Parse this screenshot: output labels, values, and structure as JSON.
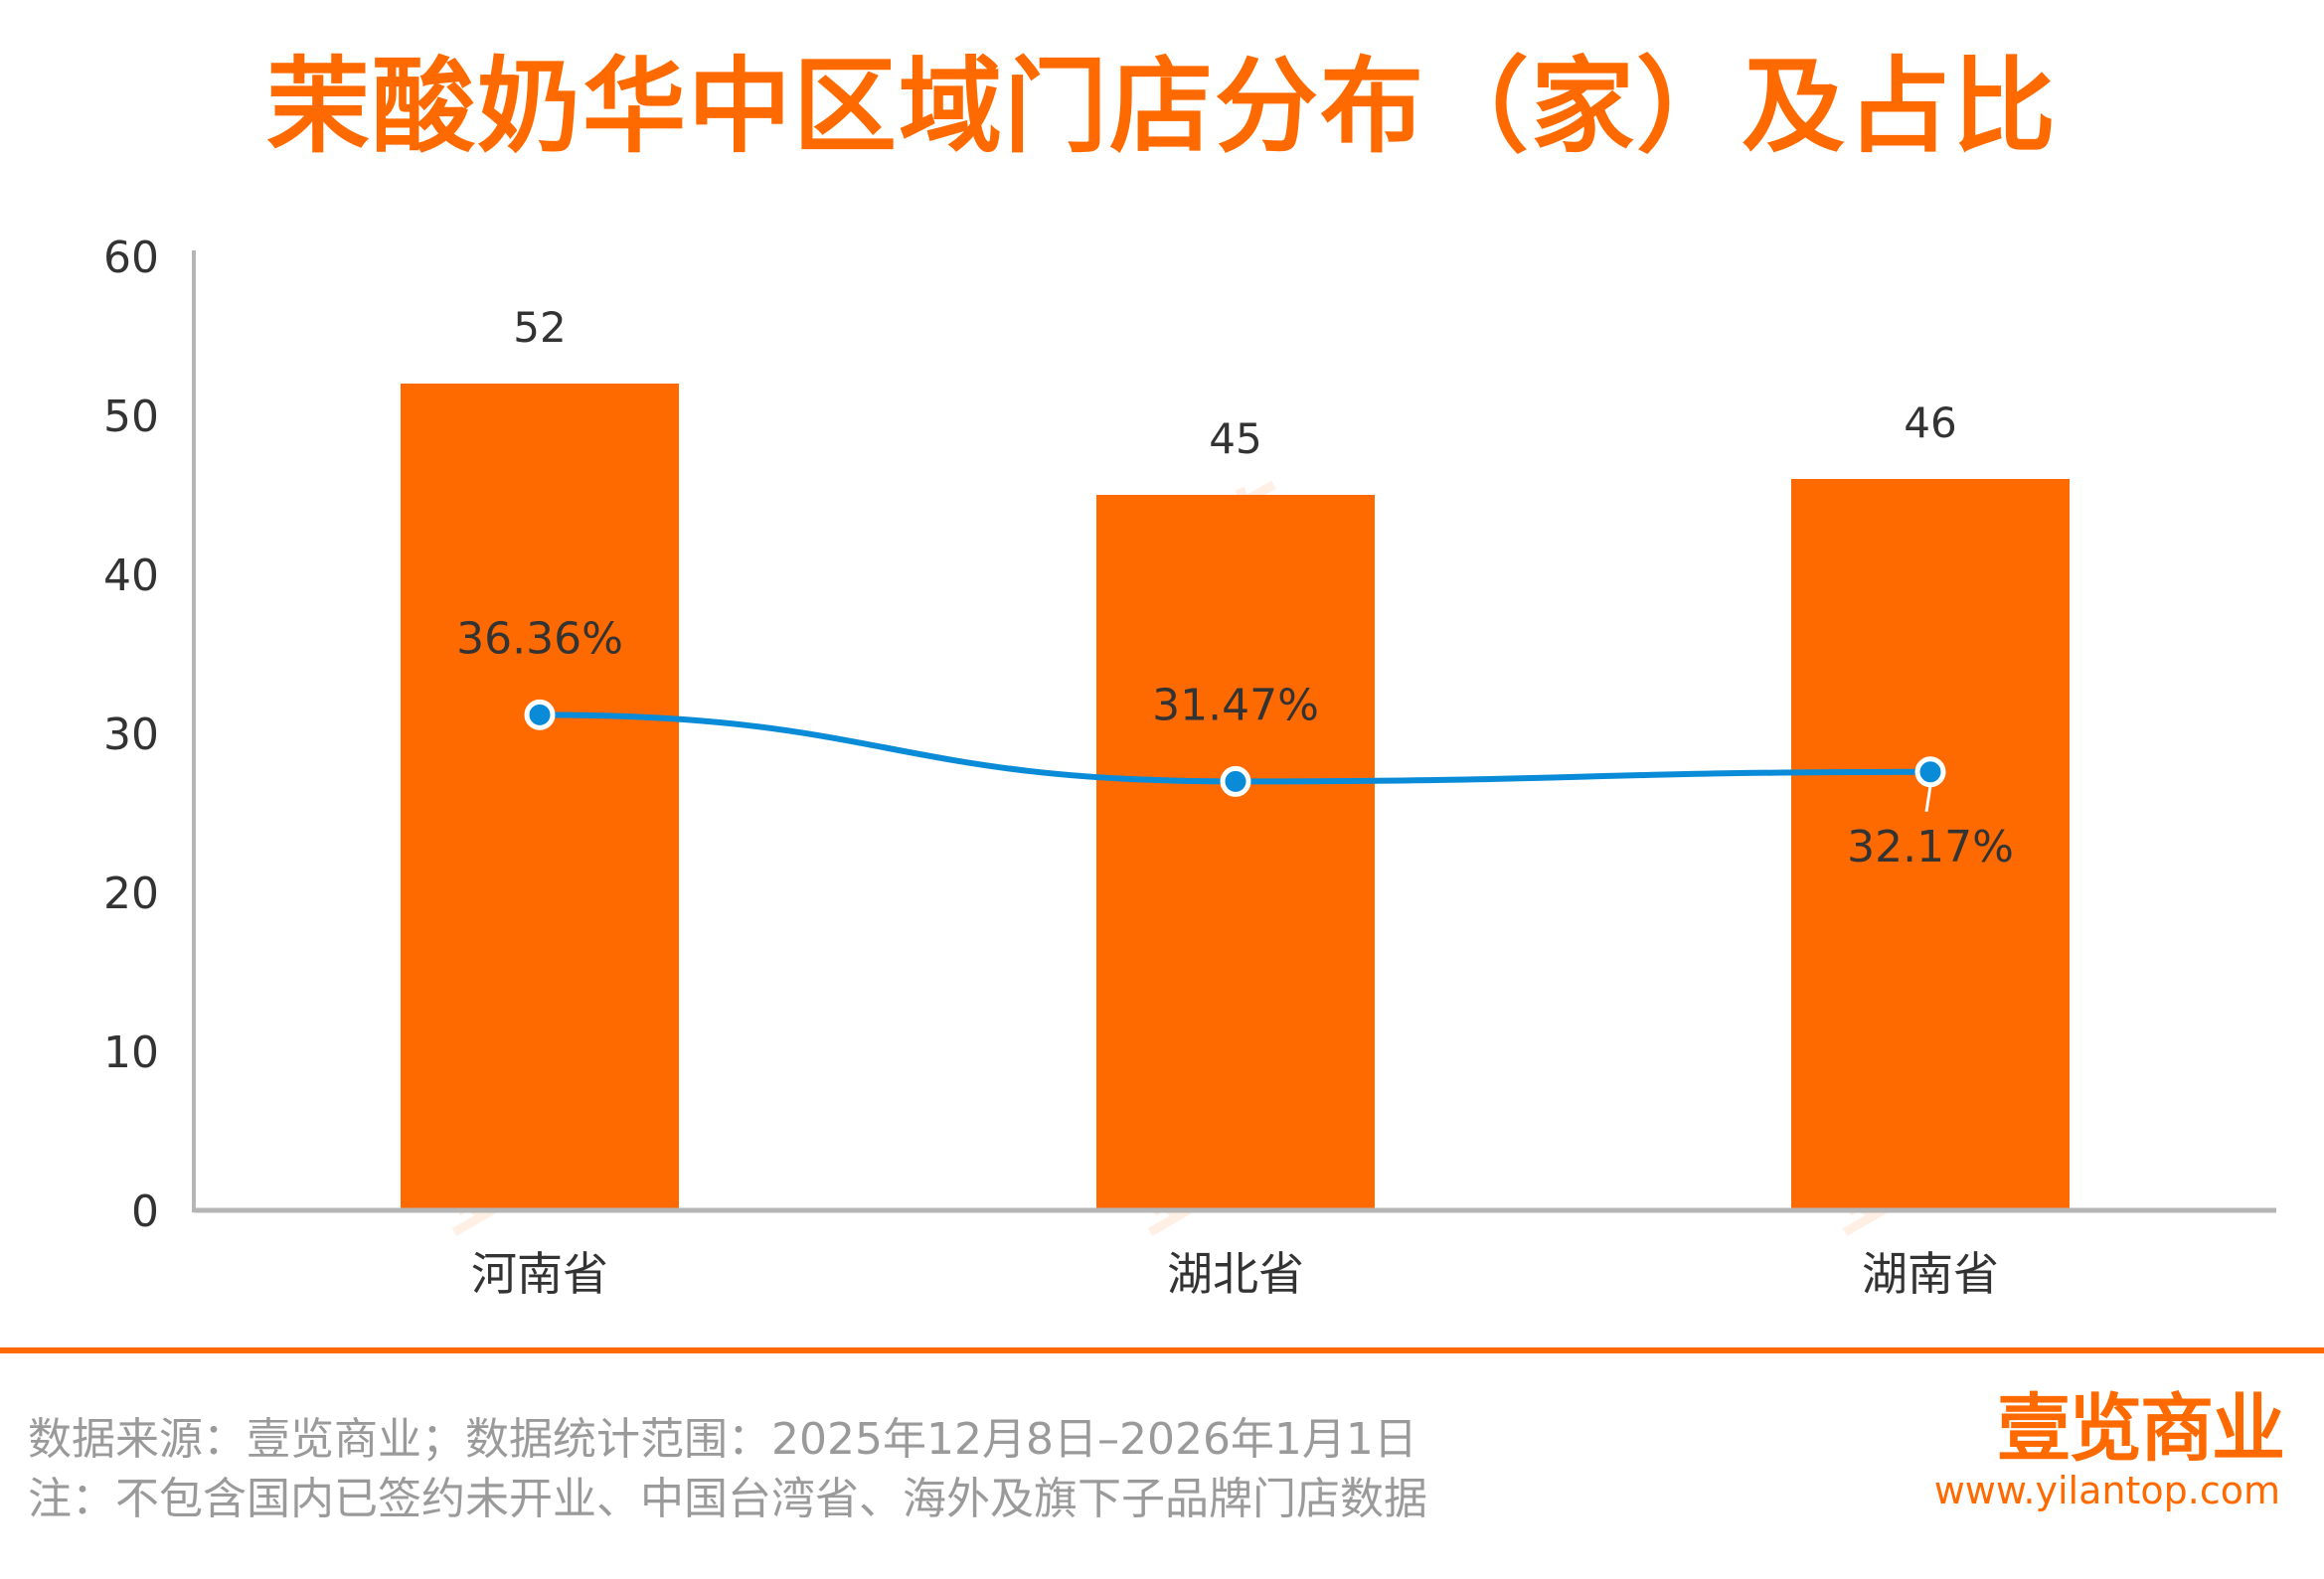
{
  "title": "茉酸奶华中区域门店分布（家）及占比",
  "chart_data": {
    "type": "bar",
    "categories": [
      "河南省",
      "湖北省",
      "湖南省"
    ],
    "series": [
      {
        "type": "bar",
        "values": [
          52,
          45,
          46
        ],
        "labels": [
          "52",
          "45",
          "46"
        ],
        "color": "#FF6A00"
      },
      {
        "type": "line",
        "values": [
          36.36,
          31.47,
          32.17
        ],
        "labels": [
          "36.36%",
          "31.47%",
          "32.17%"
        ],
        "color": "#0A8BD8"
      }
    ],
    "yticks": [
      "0",
      "10",
      "20",
      "30",
      "40",
      "50",
      "60"
    ],
    "ylim": [
      0,
      60
    ],
    "line_ylim": [
      0,
      70
    ],
    "grid": false
  },
  "footer": {
    "source": "数据来源：壹览商业；数据统计范围：2025年12月8日–2026年1月1日",
    "note": "注：不包含国内已签约未开业、中国台湾省、海外及旗下子品牌门店数据"
  },
  "brand": {
    "name": "壹览商业",
    "url": "www.yilantop.com"
  },
  "watermark": "壹览",
  "colors": {
    "accent": "#FF6A00",
    "line": "#0A8BD8",
    "axis": "#b5b5b5",
    "text": "#333333"
  }
}
